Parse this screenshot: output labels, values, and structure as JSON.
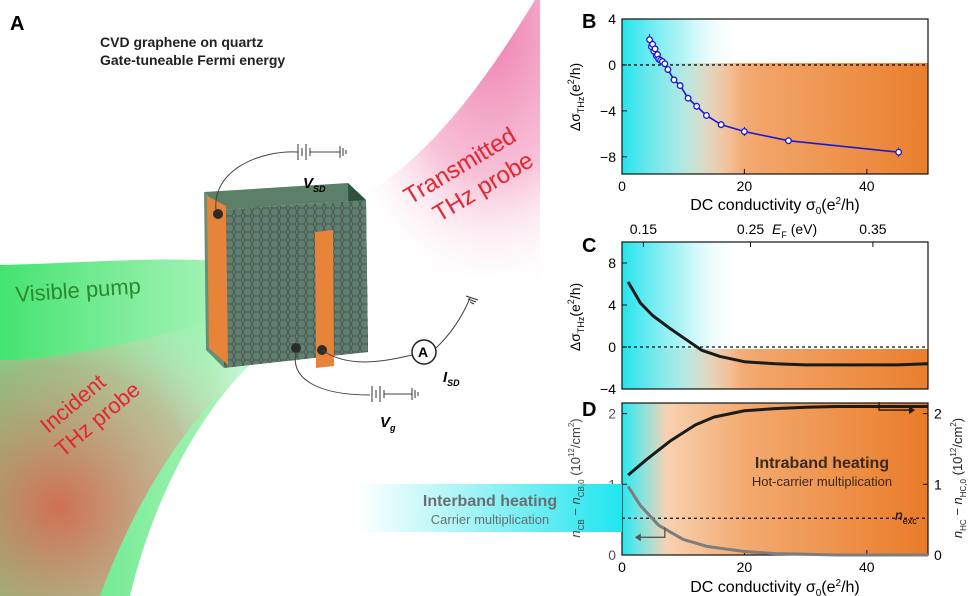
{
  "panels": {
    "a": "A",
    "b": "B",
    "c": "C",
    "d": "D"
  },
  "schematic": {
    "title_line1": "CVD graphene on quartz",
    "title_line2": "Gate-tuneable Fermi energy",
    "transmitted_1": "Transmitted",
    "transmitted_2": "THz probe",
    "visible_pump": "Visible pump",
    "incident_1": "Incident",
    "incident_2": "THz probe",
    "vsd_main": "V",
    "vsd_sub": "SD",
    "vg_main": "V",
    "vg_sub": "g",
    "isd_main": "I",
    "isd_sub": "SD",
    "ammeter": "A"
  },
  "colors": {
    "orange": "#ee8a3c",
    "cyan": "#2ce6ef",
    "blue_series": "#1a1ad0",
    "green_beam": "#3be067",
    "red_label": "#e3262f",
    "pink_beam": "#f1a5c4"
  },
  "chart_data": [
    {
      "panel": "B",
      "type": "scatter",
      "xlabel_main": "DC conductivity  σ",
      "xlabel_sub": "0",
      "xlabel_unit": "(e",
      "xlabel_sup": "2",
      "xlabel_end": "/h)",
      "ylabel_main": "Δσ",
      "ylabel_sub": "THz",
      "ylabel_unit": "(e",
      "ylabel_sup": "2",
      "ylabel_end": "/h)",
      "xlim": [
        0,
        50
      ],
      "ylim": [
        -9.5,
        4
      ],
      "x_ticks": [
        0,
        20,
        40
      ],
      "x_tick_labels": [
        "0",
        "20",
        "40"
      ],
      "y_ticks": [
        4,
        0,
        -4,
        -8
      ],
      "y_tick_labels": [
        "4",
        "0",
        "−4",
        "−8"
      ],
      "zero_line": 0,
      "series": [
        {
          "x": [
            4.5,
            4.8,
            5.0,
            5.2,
            5.4,
            5.6,
            5.8,
            6.0,
            6.3,
            6.6,
            7.0,
            7.5,
            8.5,
            9.5,
            10.8,
            12.2,
            13.8,
            16.2,
            20.0,
            27.2,
            45.2
          ],
          "y": [
            2.2,
            1.6,
            1.8,
            1.2,
            1.4,
            0.8,
            0.9,
            0.5,
            0.4,
            0.3,
            0.1,
            -0.4,
            -1.3,
            -1.8,
            -2.9,
            -3.6,
            -4.4,
            -5.2,
            -5.8,
            -6.6,
            -7.6
          ],
          "err": [
            0.5,
            0.4,
            0.4,
            0.3,
            0.3,
            0.3,
            0.3,
            0.3,
            0.3,
            0.3,
            0.3,
            0.3,
            0.3,
            0.3,
            0.3,
            0.3,
            0.3,
            0.3,
            0.4,
            0.3,
            0.4
          ]
        }
      ]
    },
    {
      "panel": "C",
      "type": "line",
      "top_axis_label_main": "E",
      "top_axis_label_sub": "F",
      "top_axis_label_unit": " (eV)",
      "top_ticks_x": [
        3.5,
        21,
        41
      ],
      "top_tick_labels": [
        "0.15",
        "0.25",
        "0.35"
      ],
      "ylabel_main": "Δσ",
      "ylabel_sub": "THz",
      "ylabel_unit": "(e",
      "ylabel_sup": "2",
      "ylabel_end": "/h)",
      "xlim": [
        0,
        50
      ],
      "ylim": [
        -4,
        10
      ],
      "y_ticks": [
        8,
        4,
        0,
        -4
      ],
      "y_tick_labels": [
        "8",
        "4",
        "0",
        "−4"
      ],
      "zero_line": 0,
      "series": [
        {
          "x": [
            1,
            3,
            5,
            8,
            10,
            13,
            16,
            20,
            25,
            30,
            35,
            40,
            45,
            50
          ],
          "y": [
            6.2,
            4.2,
            3.0,
            1.7,
            0.9,
            -0.3,
            -0.9,
            -1.4,
            -1.6,
            -1.7,
            -1.7,
            -1.7,
            -1.7,
            -1.6
          ]
        }
      ]
    },
    {
      "panel": "D",
      "type": "line",
      "xlabel_main": "DC conductivity  σ",
      "xlabel_sub": "0",
      "xlabel_unit": "(e",
      "xlabel_sup": "2",
      "xlabel_end": "/h)",
      "xlim": [
        0,
        50
      ],
      "ylim": [
        0,
        2.15
      ],
      "x_ticks": [
        0,
        20,
        40
      ],
      "x_tick_labels": [
        "0",
        "20",
        "40"
      ],
      "y_ticks": [
        0,
        1,
        2
      ],
      "y_tick_labels": [
        "0",
        "1",
        "2"
      ],
      "left_ylabel": "n_CB − n_CB,0 (10^12/cm^2)",
      "right_ylabel": "n_HC − n_HC,0 (10^12/cm^2)",
      "n_exc_level": 0.52,
      "n_exc_label_main": "n",
      "n_exc_label_sub": "exc",
      "intraband_title": "Intraband heating",
      "intraband_sub": "Hot-carrier multiplication",
      "interband_title": "Interband heating",
      "interband_sub": "Carrier multiplication",
      "series": [
        {
          "axis": "right",
          "x": [
            1,
            4,
            8,
            12,
            15,
            20,
            25,
            30,
            35,
            40,
            45,
            50
          ],
          "y": [
            1.13,
            1.35,
            1.62,
            1.84,
            1.95,
            2.04,
            2.07,
            2.09,
            2.1,
            2.1,
            2.1,
            2.1
          ]
        },
        {
          "axis": "left",
          "x": [
            1,
            3,
            6,
            10,
            14,
            20,
            25,
            30,
            35,
            40,
            50
          ],
          "y": [
            0.97,
            0.7,
            0.42,
            0.22,
            0.12,
            0.05,
            0.02,
            0.01,
            0.0,
            0.0,
            0.0
          ]
        }
      ]
    }
  ]
}
